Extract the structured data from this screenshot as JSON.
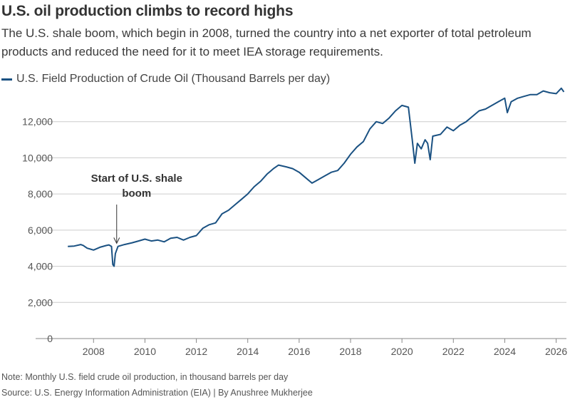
{
  "header": {
    "title": "U.S. oil production climbs to record highs",
    "subtitle": "The U.S. shale boom, which begin in 2008, turned the country into a net exporter of total petroleum products and reduced the need for it to meet IEA storage requirements."
  },
  "footer": {
    "note": "Note: Monthly U.S. field crude oil production, in thousand barrels per day",
    "source": "Source: U.S. Energy Information Administration (EIA) | By Anushree Mukherjee"
  },
  "colors": {
    "line": "#1a5182",
    "grid": "#cccccc",
    "axis": "#888888"
  },
  "chart_data": {
    "type": "line",
    "title": "U.S. oil production climbs to record highs",
    "xlabel": "",
    "ylabel": "",
    "xlim": [
      2006.8,
      2026.4
    ],
    "ylim": [
      0,
      14000
    ],
    "grid": true,
    "legend_position": "top-left",
    "x_ticks": [
      2008,
      2010,
      2012,
      2014,
      2016,
      2018,
      2020,
      2022,
      2024,
      2026
    ],
    "x_tick_labels": [
      "2008",
      "2010",
      "2012",
      "2014",
      "2016",
      "2018",
      "2020",
      "2022",
      "2024",
      "2026"
    ],
    "y_ticks": [
      0,
      2000,
      4000,
      6000,
      8000,
      10000,
      12000
    ],
    "y_tick_labels": [
      "0",
      "2,000",
      "4,000",
      "6,000",
      "8,000",
      "10,000",
      "12,000"
    ],
    "annotations": [
      {
        "line1": "Start of U.S. shale",
        "line2": "boom",
        "x": 2008.9,
        "y": 5150
      }
    ],
    "series": [
      {
        "name": "U.S. Field Production of Crude Oil (Thousand Barrels per day)",
        "points": [
          [
            2007.0,
            5100
          ],
          [
            2007.25,
            5120
          ],
          [
            2007.5,
            5200
          ],
          [
            2007.6,
            5150
          ],
          [
            2007.75,
            5000
          ],
          [
            2008.0,
            4900
          ],
          [
            2008.25,
            5050
          ],
          [
            2008.5,
            5150
          ],
          [
            2008.6,
            5180
          ],
          [
            2008.7,
            5100
          ],
          [
            2008.75,
            4100
          ],
          [
            2008.8,
            4000
          ],
          [
            2008.85,
            4700
          ],
          [
            2008.95,
            5100
          ],
          [
            2009.2,
            5200
          ],
          [
            2009.5,
            5300
          ],
          [
            2009.75,
            5400
          ],
          [
            2010.0,
            5500
          ],
          [
            2010.25,
            5400
          ],
          [
            2010.5,
            5450
          ],
          [
            2010.75,
            5350
          ],
          [
            2011.0,
            5550
          ],
          [
            2011.25,
            5600
          ],
          [
            2011.5,
            5450
          ],
          [
            2011.75,
            5600
          ],
          [
            2012.0,
            5700
          ],
          [
            2012.25,
            6100
          ],
          [
            2012.5,
            6300
          ],
          [
            2012.75,
            6400
          ],
          [
            2013.0,
            6900
          ],
          [
            2013.25,
            7100
          ],
          [
            2013.5,
            7400
          ],
          [
            2013.75,
            7700
          ],
          [
            2014.0,
            8000
          ],
          [
            2014.25,
            8400
          ],
          [
            2014.5,
            8700
          ],
          [
            2014.75,
            9100
          ],
          [
            2015.0,
            9400
          ],
          [
            2015.2,
            9600
          ],
          [
            2015.5,
            9500
          ],
          [
            2015.75,
            9400
          ],
          [
            2016.0,
            9200
          ],
          [
            2016.25,
            8900
          ],
          [
            2016.5,
            8600
          ],
          [
            2016.75,
            8800
          ],
          [
            2017.0,
            9000
          ],
          [
            2017.25,
            9200
          ],
          [
            2017.5,
            9300
          ],
          [
            2017.75,
            9700
          ],
          [
            2018.0,
            10200
          ],
          [
            2018.25,
            10600
          ],
          [
            2018.5,
            10900
          ],
          [
            2018.75,
            11600
          ],
          [
            2019.0,
            12000
          ],
          [
            2019.25,
            11900
          ],
          [
            2019.5,
            12200
          ],
          [
            2019.75,
            12600
          ],
          [
            2020.0,
            12900
          ],
          [
            2020.25,
            12800
          ],
          [
            2020.4,
            11000
          ],
          [
            2020.5,
            9700
          ],
          [
            2020.6,
            10800
          ],
          [
            2020.75,
            10500
          ],
          [
            2020.9,
            11000
          ],
          [
            2021.0,
            10800
          ],
          [
            2021.1,
            9900
          ],
          [
            2021.2,
            11200
          ],
          [
            2021.5,
            11300
          ],
          [
            2021.75,
            11700
          ],
          [
            2022.0,
            11500
          ],
          [
            2022.25,
            11800
          ],
          [
            2022.5,
            12000
          ],
          [
            2022.75,
            12300
          ],
          [
            2023.0,
            12600
          ],
          [
            2023.25,
            12700
          ],
          [
            2023.5,
            12900
          ],
          [
            2023.75,
            13100
          ],
          [
            2024.0,
            13300
          ],
          [
            2024.1,
            12500
          ],
          [
            2024.25,
            13100
          ],
          [
            2024.5,
            13300
          ],
          [
            2024.75,
            13400
          ],
          [
            2025.0,
            13500
          ],
          [
            2025.25,
            13500
          ],
          [
            2025.5,
            13700
          ],
          [
            2025.75,
            13600
          ],
          [
            2026.0,
            13550
          ],
          [
            2026.1,
            13700
          ],
          [
            2026.2,
            13850
          ],
          [
            2026.3,
            13650
          ]
        ]
      }
    ]
  }
}
